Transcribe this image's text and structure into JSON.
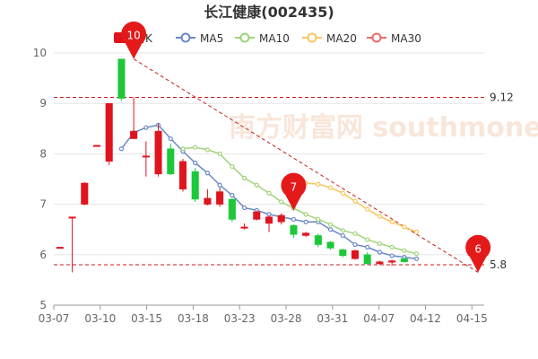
{
  "chart_data": {
    "type": "candlestick",
    "title": "长江健康(002435)",
    "legend": [
      "日K",
      "MA5",
      "MA10",
      "MA20",
      "MA30"
    ],
    "legend_placement": "top",
    "colors": {
      "up": "#e0141e",
      "down": "#1cc83a",
      "MA5": "#6b89c7",
      "MA10": "#9fd47a",
      "MA20": "#f7c65f",
      "MA30": "#ee6a6a",
      "reference": "#c81d1d",
      "marker": "#e41a1a"
    },
    "ylim": [
      5,
      10
    ],
    "yticks": [
      5,
      6,
      7,
      8,
      9,
      10
    ],
    "xlabels": [
      "03-07",
      "03-10",
      "03-15",
      "03-18",
      "03-23",
      "03-28",
      "03-31",
      "04-07",
      "04-12",
      "04-15"
    ],
    "grid": true,
    "watermark": "南方财富网 southmoney.com",
    "reference_lines": [
      {
        "label": "9.12",
        "value": 9.12
      },
      {
        "label": "5.8",
        "value": 5.8
      }
    ],
    "markers": [
      {
        "label": "10",
        "index": 6,
        "value": 9.88
      },
      {
        "label": "7",
        "index": 19,
        "value": 6.88
      },
      {
        "label": "6",
        "index": 34,
        "value": 5.65
      }
    ],
    "trend_line": {
      "from_index": 6,
      "from_value": 9.88,
      "to_index": 34,
      "to_value": 5.65
    },
    "candles": [
      {
        "o": 6.15,
        "c": 6.15,
        "h": 6.15,
        "l": 6.15
      },
      {
        "o": 6.75,
        "c": 6.75,
        "h": 6.75,
        "l": 5.65
      },
      {
        "o": 7.0,
        "c": 7.42,
        "h": 7.44,
        "l": 6.98
      },
      {
        "o": 8.17,
        "c": 8.17,
        "h": 8.17,
        "l": 8.17
      },
      {
        "o": 7.85,
        "c": 9.0,
        "h": 9.0,
        "l": 7.78
      },
      {
        "o": 9.88,
        "c": 9.1,
        "h": 9.88,
        "l": 9.05
      },
      {
        "o": 8.3,
        "c": 8.45,
        "h": 9.12,
        "l": 8.3
      },
      {
        "o": 7.96,
        "c": 7.96,
        "h": 8.25,
        "l": 7.55
      },
      {
        "o": 7.6,
        "c": 8.45,
        "h": 8.6,
        "l": 7.55
      },
      {
        "o": 8.1,
        "c": 7.6,
        "h": 8.2,
        "l": 7.58
      },
      {
        "o": 7.3,
        "c": 7.85,
        "h": 7.9,
        "l": 7.25
      },
      {
        "o": 7.65,
        "c": 7.1,
        "h": 7.72,
        "l": 7.05
      },
      {
        "o": 7.0,
        "c": 7.12,
        "h": 7.3,
        "l": 6.98
      },
      {
        "o": 7.0,
        "c": 7.25,
        "h": 7.33,
        "l": 6.95
      },
      {
        "o": 7.1,
        "c": 6.7,
        "h": 7.12,
        "l": 6.65
      },
      {
        "o": 6.55,
        "c": 6.55,
        "h": 6.62,
        "l": 6.5
      },
      {
        "o": 6.7,
        "c": 6.85,
        "h": 6.88,
        "l": 6.68
      },
      {
        "o": 6.62,
        "c": 6.75,
        "h": 6.78,
        "l": 6.45
      },
      {
        "o": 6.65,
        "c": 6.78,
        "h": 6.82,
        "l": 6.6
      },
      {
        "o": 6.58,
        "c": 6.4,
        "h": 6.6,
        "l": 6.33
      },
      {
        "o": 6.38,
        "c": 6.43,
        "h": 6.45,
        "l": 6.35
      },
      {
        "o": 6.38,
        "c": 6.2,
        "h": 6.42,
        "l": 6.15
      },
      {
        "o": 6.25,
        "c": 6.13,
        "h": 6.27,
        "l": 6.1
      },
      {
        "o": 6.1,
        "c": 5.98,
        "h": 6.12,
        "l": 5.95
      },
      {
        "o": 5.92,
        "c": 6.08,
        "h": 6.1,
        "l": 5.9
      },
      {
        "o": 6.0,
        "c": 5.82,
        "h": 6.05,
        "l": 5.8
      },
      {
        "o": 5.82,
        "c": 5.86,
        "h": 5.88,
        "l": 5.8
      },
      {
        "o": 5.85,
        "c": 5.88,
        "h": 5.9,
        "l": 5.78
      },
      {
        "o": 5.92,
        "c": 5.86,
        "h": 5.95,
        "l": 5.84
      }
    ],
    "candle_x_index": [
      0,
      1,
      2,
      3,
      4,
      5,
      6,
      7,
      8,
      9,
      10,
      11,
      12,
      13,
      14,
      15,
      16,
      17,
      18,
      19,
      20,
      21,
      22,
      23,
      24,
      25,
      26,
      27,
      28
    ],
    "series": [
      {
        "name": "MA5",
        "start_index": 5,
        "values": [
          8.1,
          8.42,
          8.52,
          8.57,
          8.3,
          8.05,
          7.82,
          7.62,
          7.38,
          7.18,
          6.93,
          6.88,
          6.8,
          6.75,
          6.7,
          6.65,
          6.65,
          6.5,
          6.38,
          6.2,
          6.15,
          6.05,
          5.98,
          5.95,
          5.92
        ]
      },
      {
        "name": "MA10",
        "start_index": 10,
        "values": [
          8.1,
          8.13,
          8.08,
          8.0,
          7.75,
          7.52,
          7.38,
          7.22,
          7.05,
          6.92,
          6.8,
          6.7,
          6.6,
          6.48,
          6.42,
          6.3,
          6.22,
          6.15,
          6.08,
          6.02
        ]
      },
      {
        "name": "MA20",
        "start_index": 20,
        "values": [
          7.42,
          7.4,
          7.33,
          7.22,
          7.06,
          6.9,
          6.76,
          6.65,
          6.55,
          6.45
        ]
      }
    ]
  }
}
